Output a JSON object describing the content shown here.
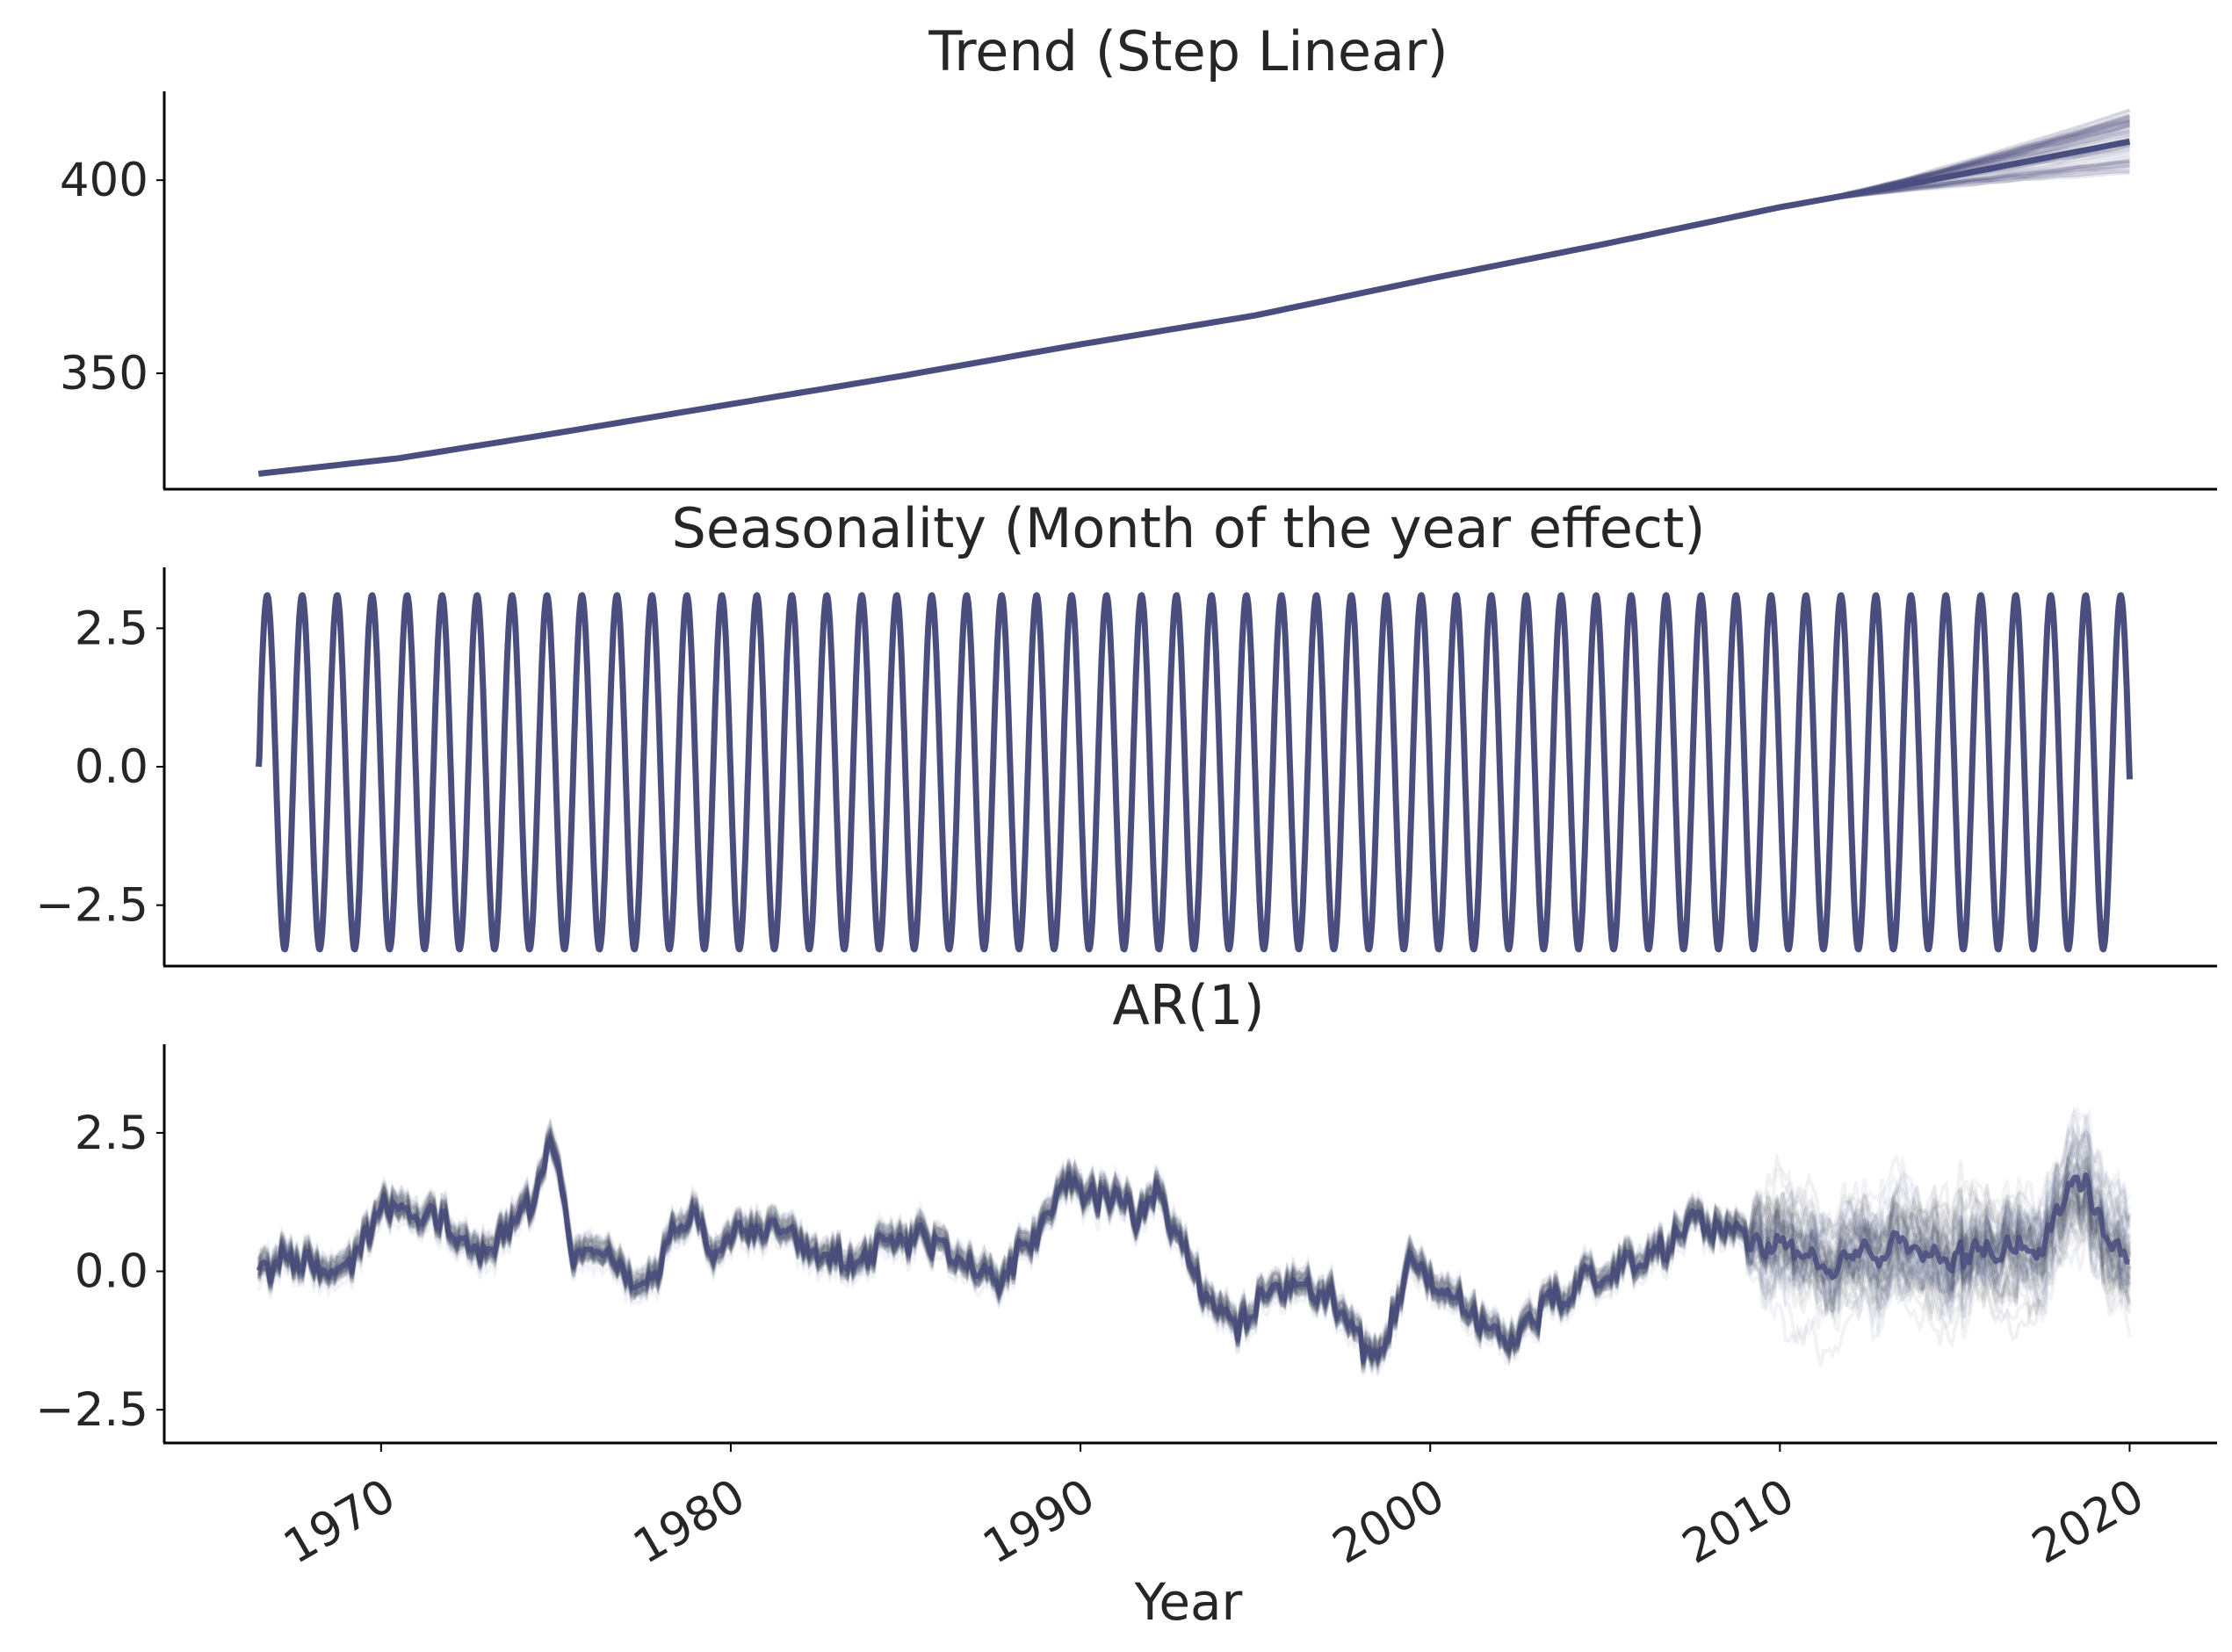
{
  "colors": {
    "line": "#4a4e7e",
    "line_dark": "#3b3e63",
    "noise": "#3a3a3a",
    "spine": "#000000",
    "text": "#262626",
    "background": "#ffffff"
  },
  "chart_data": [
    {
      "type": "line",
      "title": "Trend (Step Linear)",
      "xlabel": "",
      "ylabel": "",
      "xlim": [
        1963.8,
        2022.5
      ],
      "ylim": [
        320,
        423
      ],
      "yticks": [
        350,
        400
      ],
      "ytick_labels": [
        "350",
        "400"
      ],
      "grid": false,
      "legend": "none",
      "series": [
        {
          "x": [
            1966.5,
            1970.5,
            1975,
            1980,
            1985,
            1990,
            1995,
            2000,
            2005,
            2010,
            2014,
            2020
          ],
          "y": [
            324,
            328,
            334.5,
            342,
            349.5,
            357.5,
            365,
            374.5,
            383.5,
            393,
            399.5,
            410
          ]
        }
      ],
      "spread_at_end": [
        402,
        418
      ]
    },
    {
      "type": "line",
      "title": "Seasonality (Month of the year effect)",
      "xlabel": "",
      "ylabel": "",
      "xlim": [
        1963.8,
        2022.5
      ],
      "ylim": [
        -3.6,
        3.6
      ],
      "yticks": [
        -2.5,
        0.0,
        2.5
      ],
      "ytick_labels": [
        "−2.5",
        "0.0",
        "2.5"
      ],
      "grid": false,
      "legend": "none",
      "series": [
        {
          "x_start": 1966.5,
          "x_end": 2020,
          "period_years": 1,
          "peak_value": 3.1,
          "trough_value": -3.3,
          "start_value": 0.0
        }
      ]
    },
    {
      "type": "line",
      "title": "AR(1)",
      "xlabel": "Year",
      "ylabel": "",
      "xlim": [
        1963.8,
        2022.5
      ],
      "ylim": [
        -3.1,
        4.1
      ],
      "yticks": [
        -2.5,
        0.0,
        2.5
      ],
      "ytick_labels": [
        "−2.5",
        "0.0",
        "2.5"
      ],
      "xticks": [
        1970,
        1980,
        1990,
        2000,
        2010,
        2020
      ],
      "xtick_labels": [
        "1970",
        "1980",
        "1990",
        "2000",
        "2010",
        "2020"
      ],
      "grid": false,
      "legend": "none",
      "series": [
        {
          "x": [
            1966.5,
            1967.5,
            1968.5,
            1969.5,
            1970.5,
            1971.5,
            1972.5,
            1973.5,
            1974.3,
            1974.8,
            1975.5,
            1976.5,
            1977.5,
            1978.5,
            1979.5,
            1980.5,
            1981.5,
            1982.5,
            1983.5,
            1984.5,
            1985.5,
            1986.5,
            1987.5,
            1988.5,
            1989.5,
            1990.5,
            1991.5,
            1992.3,
            1993.5,
            1994.5,
            1995.5,
            1996.5,
            1997.5,
            1998.5,
            1999.5,
            2000.5,
            2001.5,
            2002.5,
            2003.5,
            2004.5,
            2005.5,
            2006.5,
            2007.5,
            2008.5,
            2009.5,
            2010.5,
            2011.5,
            2012.5,
            2013.5,
            2014.5,
            2015.5,
            2016.5,
            2017.5,
            2018.5,
            2019.5,
            2020
          ],
          "y": [
            0,
            0.2,
            -0.1,
            0.6,
            1.3,
            1.1,
            0.5,
            0.7,
            1.2,
            2.3,
            0.5,
            0.3,
            -0.3,
            0.8,
            0.5,
            0.8,
            0.7,
            0.2,
            0.1,
            0.6,
            0.5,
            0.2,
            -0.2,
            0.6,
            1.4,
            1.5,
            1.1,
            1.3,
            -0.1,
            -1.2,
            -0.4,
            -0.2,
            -0.8,
            -1.5,
            0.3,
            -0.4,
            -0.9,
            -1.2,
            -0.5,
            -0.1,
            0.1,
            0.5,
            0.8,
            0.9,
            0.3,
            0.4,
            0.2,
            0.3,
            0.5,
            0.2,
            0.3,
            0.4,
            0.6,
            1.8,
            0.4,
            0.2
          ]
        }
      ],
      "uncertainty_width": {
        "before_2009": 0.55,
        "after_2009": 1.6
      }
    }
  ]
}
